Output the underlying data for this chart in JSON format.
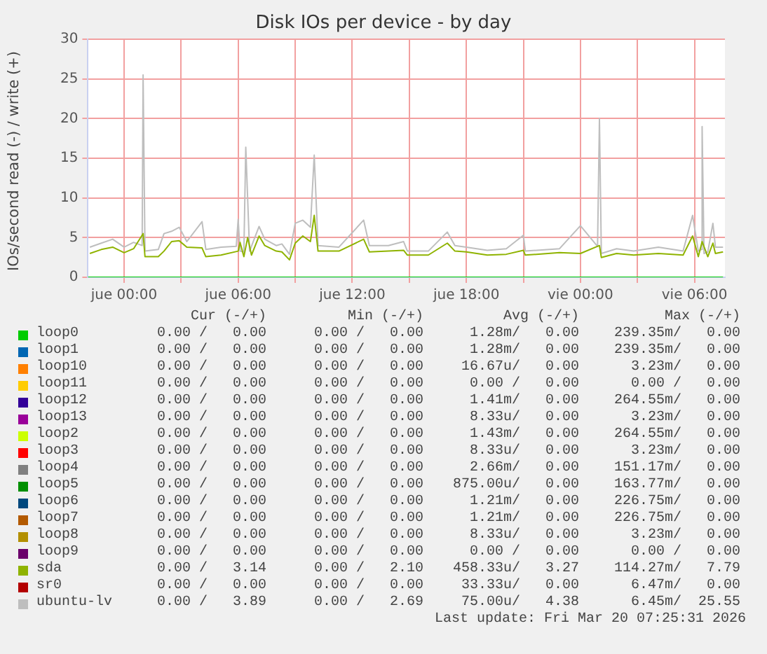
{
  "chart_data": {
    "type": "line",
    "title": "Disk IOs per device - by day",
    "ylabel": "IOs/second read (-) / write (+)",
    "xlim": [
      "2026-03-18T22:06",
      "2026-03-20T07:36"
    ],
    "xticks": [
      {
        "value": "2026-03-19T00:00",
        "label": "jue 00:00"
      },
      {
        "value": "2026-03-19T03:00",
        "label": null
      },
      {
        "value": "2026-03-19T06:00",
        "label": "jue 06:00"
      },
      {
        "value": "2026-03-19T09:00",
        "label": null
      },
      {
        "value": "2026-03-19T12:00",
        "label": "jue 12:00"
      },
      {
        "value": "2026-03-19T15:00",
        "label": null
      },
      {
        "value": "2026-03-19T18:00",
        "label": "jue 18:00"
      },
      {
        "value": "2026-03-19T21:00",
        "label": null
      },
      {
        "value": "2026-03-20T00:00",
        "label": "vie 00:00"
      },
      {
        "value": "2026-03-20T03:00",
        "label": null
      },
      {
        "value": "2026-03-20T06:00",
        "label": "vie 06:00"
      }
    ],
    "ylim": [
      0,
      30
    ],
    "yticks": [
      0,
      5,
      10,
      15,
      20,
      25,
      30
    ],
    "grid": true,
    "legend": "bottom",
    "series": [
      {
        "name": "loop0",
        "color": "#00cc00",
        "x": [
          "2026-03-18T22:06",
          "2026-03-20T07:30"
        ],
        "values": [
          0,
          0
        ]
      },
      {
        "name": "loop1",
        "color": "#0066b3"
      },
      {
        "name": "loop10",
        "color": "#ff8000"
      },
      {
        "name": "loop11",
        "color": "#ffcc00"
      },
      {
        "name": "loop12",
        "color": "#330099"
      },
      {
        "name": "loop13",
        "color": "#990099"
      },
      {
        "name": "loop2",
        "color": "#ccff00"
      },
      {
        "name": "loop3",
        "color": "#ff0000"
      },
      {
        "name": "loop4",
        "color": "#808080"
      },
      {
        "name": "loop5",
        "color": "#008f00"
      },
      {
        "name": "loop6",
        "color": "#00487d"
      },
      {
        "name": "loop7",
        "color": "#b35a00"
      },
      {
        "name": "loop8",
        "color": "#b38f00"
      },
      {
        "name": "loop9",
        "color": "#6b006b"
      },
      {
        "name": "sda",
        "color": "#8fb300",
        "x": [
          "2026-03-18T22:12",
          "2026-03-18T22:48",
          "2026-03-18T23:24",
          "2026-03-19T00:00",
          "2026-03-19T00:30",
          "2026-03-19T01:00",
          "2026-03-19T01:06",
          "2026-03-19T01:48",
          "2026-03-19T02:06",
          "2026-03-19T02:30",
          "2026-03-19T02:54",
          "2026-03-19T03:18",
          "2026-03-19T04:06",
          "2026-03-19T04:18",
          "2026-03-19T05:06",
          "2026-03-19T06:00",
          "2026-03-19T06:06",
          "2026-03-19T06:18",
          "2026-03-19T06:30",
          "2026-03-19T06:42",
          "2026-03-19T07:06",
          "2026-03-19T07:24",
          "2026-03-19T08:00",
          "2026-03-19T08:18",
          "2026-03-19T08:42",
          "2026-03-19T09:00",
          "2026-03-19T09:24",
          "2026-03-19T09:48",
          "2026-03-19T10:00",
          "2026-03-19T10:12",
          "2026-03-19T11:18",
          "2026-03-19T12:36",
          "2026-03-19T12:54",
          "2026-03-19T13:54",
          "2026-03-19T14:42",
          "2026-03-19T14:54",
          "2026-03-19T16:00",
          "2026-03-19T17:00",
          "2026-03-19T17:24",
          "2026-03-19T18:00",
          "2026-03-19T19:06",
          "2026-03-19T20:06",
          "2026-03-19T21:00",
          "2026-03-19T21:06",
          "2026-03-19T22:54",
          "2026-03-20T00:00",
          "2026-03-20T01:00",
          "2026-03-20T01:06",
          "2026-03-20T01:54",
          "2026-03-20T02:48",
          "2026-03-20T04:06",
          "2026-03-20T05:24",
          "2026-03-20T05:54",
          "2026-03-20T06:12",
          "2026-03-20T06:24",
          "2026-03-20T06:42",
          "2026-03-20T06:58",
          "2026-03-20T07:06",
          "2026-03-20T07:30"
        ],
        "values": [
          3.0,
          3.5,
          3.8,
          3.1,
          3.6,
          5.5,
          2.6,
          2.6,
          3.3,
          4.5,
          4.6,
          3.8,
          3.7,
          2.6,
          2.8,
          3.3,
          4.4,
          2.6,
          5.0,
          2.8,
          5.2,
          4.0,
          3.3,
          3.2,
          2.2,
          4.3,
          5.2,
          4.5,
          7.8,
          3.3,
          3.3,
          4.8,
          3.2,
          3.3,
          3.4,
          2.8,
          2.8,
          4.3,
          3.3,
          3.2,
          2.8,
          2.9,
          3.4,
          2.8,
          3.1,
          3.0,
          4.0,
          2.5,
          3.0,
          2.8,
          3.0,
          2.8,
          5.2,
          2.6,
          4.5,
          2.6,
          4.3,
          3.0,
          3.2
        ]
      },
      {
        "name": "sr0",
        "color": "#b30000"
      },
      {
        "name": "ubuntu-lv",
        "color": "#bebebe",
        "x": [
          "2026-03-18T22:12",
          "2026-03-18T22:48",
          "2026-03-18T23:24",
          "2026-03-19T00:00",
          "2026-03-19T00:30",
          "2026-03-19T00:57",
          "2026-03-19T01:00",
          "2026-03-19T01:06",
          "2026-03-19T01:48",
          "2026-03-19T02:06",
          "2026-03-19T02:30",
          "2026-03-19T02:54",
          "2026-03-19T03:18",
          "2026-03-19T04:06",
          "2026-03-19T04:18",
          "2026-03-19T05:06",
          "2026-03-19T05:54",
          "2026-03-19T06:00",
          "2026-03-19T06:06",
          "2026-03-19T06:18",
          "2026-03-19T06:24",
          "2026-03-19T06:36",
          "2026-03-19T07:06",
          "2026-03-19T07:24",
          "2026-03-19T08:00",
          "2026-03-19T08:18",
          "2026-03-19T08:42",
          "2026-03-19T09:00",
          "2026-03-19T09:24",
          "2026-03-19T09:48",
          "2026-03-19T10:00",
          "2026-03-19T10:12",
          "2026-03-19T11:18",
          "2026-03-19T12:36",
          "2026-03-19T12:54",
          "2026-03-19T13:54",
          "2026-03-19T14:42",
          "2026-03-19T14:54",
          "2026-03-19T16:00",
          "2026-03-19T17:00",
          "2026-03-19T17:24",
          "2026-03-19T18:00",
          "2026-03-19T19:06",
          "2026-03-19T20:06",
          "2026-03-19T21:00",
          "2026-03-19T21:06",
          "2026-03-19T22:54",
          "2026-03-20T00:00",
          "2026-03-20T00:54",
          "2026-03-20T01:00",
          "2026-03-20T01:06",
          "2026-03-20T01:54",
          "2026-03-20T02:48",
          "2026-03-20T04:06",
          "2026-03-20T05:24",
          "2026-03-20T05:54",
          "2026-03-20T06:12",
          "2026-03-20T06:21",
          "2026-03-20T06:24",
          "2026-03-20T06:30",
          "2026-03-20T06:42",
          "2026-03-20T06:58",
          "2026-03-20T07:06",
          "2026-03-20T07:30"
        ],
        "values": [
          3.8,
          4.3,
          4.8,
          3.8,
          4.4,
          4.0,
          25.5,
          3.3,
          3.5,
          5.5,
          5.8,
          6.3,
          4.5,
          7.0,
          3.5,
          3.8,
          3.9,
          7.3,
          3.3,
          3.2,
          16.4,
          3.3,
          6.4,
          4.8,
          4.0,
          4.2,
          2.9,
          6.8,
          7.2,
          6.3,
          15.4,
          4.0,
          3.8,
          7.2,
          4.0,
          4.0,
          4.5,
          3.3,
          3.3,
          5.7,
          4.0,
          3.8,
          3.4,
          3.6,
          5.3,
          3.3,
          3.6,
          6.5,
          3.9,
          20.0,
          3.0,
          3.6,
          3.3,
          3.8,
          3.3,
          7.8,
          3.3,
          3.5,
          19.0,
          3.0,
          3.2,
          6.8,
          3.8,
          3.8
        ]
      }
    ],
    "annotations": [
      "Cur (-/+)",
      "Min (-/+)",
      "Avg (-/+)",
      "Max (-/+)",
      "0.00 /   0.00",
      "0.00 /   0.00",
      "1.28m/   0.00",
      "239.35m/   0.00",
      "0.00 /   0.00",
      "0.00 /   0.00",
      "1.28m/   0.00",
      "239.35m/   0.00",
      "0.00 /   0.00",
      "0.00 /   0.00",
      "16.67u/   0.00",
      "3.23m/   0.00",
      "0.00 /   0.00",
      "0.00 /   0.00",
      "0.00 /   0.00",
      "0.00 /   0.00",
      "0.00 /   0.00",
      "0.00 /   0.00",
      "1.41m/   0.00",
      "264.55m/   0.00",
      "0.00 /   0.00",
      "0.00 /   0.00",
      "8.33u/   0.00",
      "3.23m/   0.00",
      "0.00 /   0.00",
      "0.00 /   0.00",
      "1.43m/   0.00",
      "264.55m/   0.00",
      "0.00 /   0.00",
      "0.00 /   0.00",
      "8.33u/   0.00",
      "3.23m/   0.00",
      "0.00 /   0.00",
      "0.00 /   0.00",
      "2.66m/   0.00",
      "151.17m/   0.00",
      "0.00 /   0.00",
      "0.00 /   0.00",
      "875.00u/   0.00",
      "163.77m/   0.00",
      "0.00 /   0.00",
      "0.00 /   0.00",
      "1.21m/   0.00",
      "226.75m/   0.00",
      "0.00 /   0.00",
      "0.00 /   0.00",
      "1.21m/   0.00",
      "226.75m/   0.00",
      "0.00 /   0.00",
      "0.00 /   0.00",
      "8.33u/   0.00",
      "3.23m/   0.00",
      "0.00 /   0.00",
      "0.00 /   0.00",
      "0.00 /   0.00",
      "0.00 /   0.00",
      "0.00 /   3.14",
      "0.00 /   2.10",
      "458.33u/   3.27",
      "114.27m/   7.79",
      "0.00 /   0.00",
      "0.00 /   0.00",
      "33.33u/   0.00",
      "6.47m/   0.00",
      "0.00 /   3.89",
      "0.00 /   2.69",
      "75.00u/   4.38",
      "6.45m/  25.55",
      "Last update: Fri Mar 20 07:25:31 2026"
    ]
  }
}
